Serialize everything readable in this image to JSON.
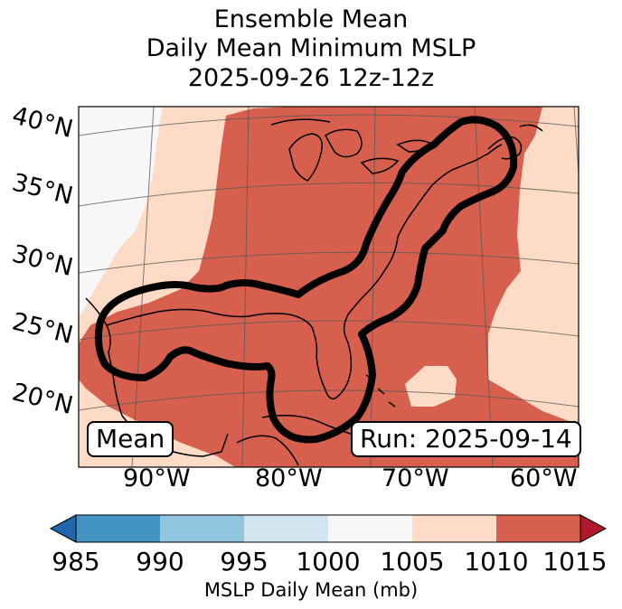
{
  "title": {
    "line1": "Ensemble Mean",
    "line2": "Daily Mean Minimum MSLP",
    "line3": "2025-09-26 12z-12z"
  },
  "map": {
    "lat_labels": [
      "40°N",
      "35°N",
      "30°N",
      "25°N",
      "20°N"
    ],
    "lon_labels": [
      "90°W",
      "80°W",
      "70°W",
      "60°W"
    ],
    "mean_label": "Mean",
    "run_label": "Run: 2025-09-14"
  },
  "colorbar": {
    "ticks": [
      "985",
      "990",
      "995",
      "1000",
      "1005",
      "1010",
      "1015"
    ],
    "label": "MSLP Daily Mean (mb)",
    "colors": {
      "below_985": "#2166ac",
      "985_990": "#4393c3",
      "990_995": "#92c5de",
      "995_1000": "#d1e5f0",
      "1000_1005": "#f7f7f7",
      "1005_1010": "#fddbc7",
      "1010_1015": "#d6604d",
      "above_1015": "#b2182b"
    }
  }
}
